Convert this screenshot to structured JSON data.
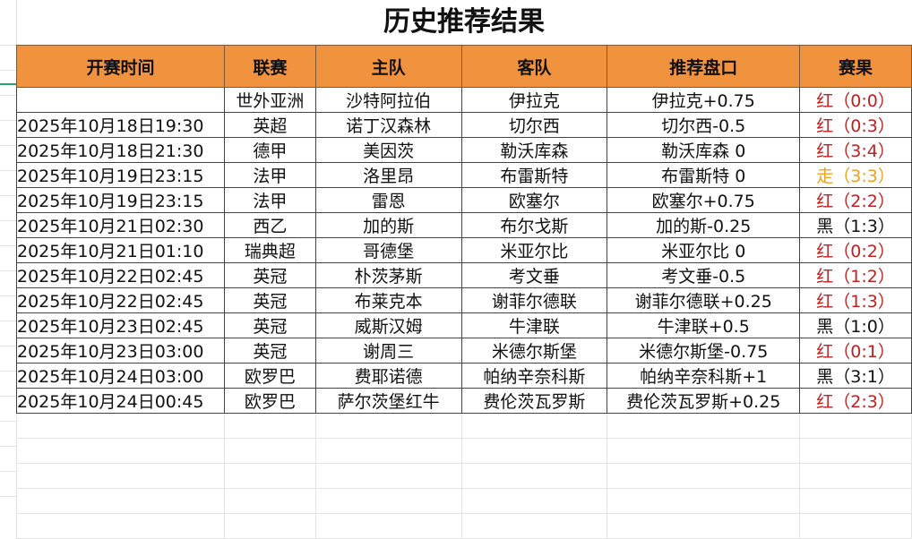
{
  "title": "历史推荐结果",
  "headers": [
    "开赛时间",
    "联赛",
    "主队",
    "客队",
    "推荐盘口",
    "赛果"
  ],
  "rows": [
    [
      "",
      "世外亚洲",
      "沙特阿拉伯",
      "伊拉克",
      "伊拉克+0.75",
      "红（0:0）",
      "red"
    ],
    [
      "2025年10月18日19:30",
      "英超",
      "诺丁汉森林",
      "切尔西",
      "切尔西-0.5",
      "红（0:3）",
      "red"
    ],
    [
      "2025年10月18日21:30",
      "德甲",
      "美因茨",
      "勒沃库森",
      "勒沃库森 0",
      "红（3:4）",
      "red"
    ],
    [
      "2025年10月19日23:15",
      "法甲",
      "洛里昂",
      "布雷斯特",
      "布雷斯特 0",
      "走（3:3）",
      "gold"
    ],
    [
      "2025年10月19日23:15",
      "法甲",
      "雷恩",
      "欧塞尔",
      "欧塞尔+0.75",
      "红（2:2）",
      "red"
    ],
    [
      "2025年10月21日02:30",
      "西乙",
      "加的斯",
      "布尔戈斯",
      "加的斯-0.25",
      "黑（1:3）",
      "black"
    ],
    [
      "2025年10月21日01:10",
      "瑞典超",
      "哥德堡",
      "米亚尔比",
      "米亚尔比 0",
      "红（0:2）",
      "red"
    ],
    [
      "2025年10月22日02:45",
      "英冠",
      "朴茨茅斯",
      "考文垂",
      "考文垂-0.5",
      "红（1:2）",
      "red"
    ],
    [
      "2025年10月22日02:45",
      "英冠",
      "布莱克本",
      "谢菲尔德联",
      "谢菲尔德联+0.25",
      "红（1:3）",
      "red"
    ],
    [
      "2025年10月23日02:45",
      "英冠",
      "威斯汉姆",
      "牛津联",
      "牛津联+0.5",
      "黑（1:0）",
      "black"
    ],
    [
      "2025年10月23日03:00",
      "英冠",
      "谢周三",
      "米德尔斯堡",
      "米德尔斯堡-0.75",
      "红（0:1）",
      "red"
    ],
    [
      "2025年10月24日03:00",
      "欧罗巴",
      "费耶诺德",
      "帕纳辛奈科斯",
      "帕纳辛奈科斯+1",
      "黑（3:1）",
      "black"
    ],
    [
      "2025年10月24日00:45",
      "欧罗巴",
      "萨尔茨堡红牛",
      "费伦茨瓦罗斯",
      "费伦茨瓦罗斯+0.25",
      "红（2:3）",
      "red"
    ]
  ],
  "colors": {
    "header_bg": "#f0923e",
    "red": "#c02020",
    "push": "#f0a020",
    "black": "#111111"
  }
}
